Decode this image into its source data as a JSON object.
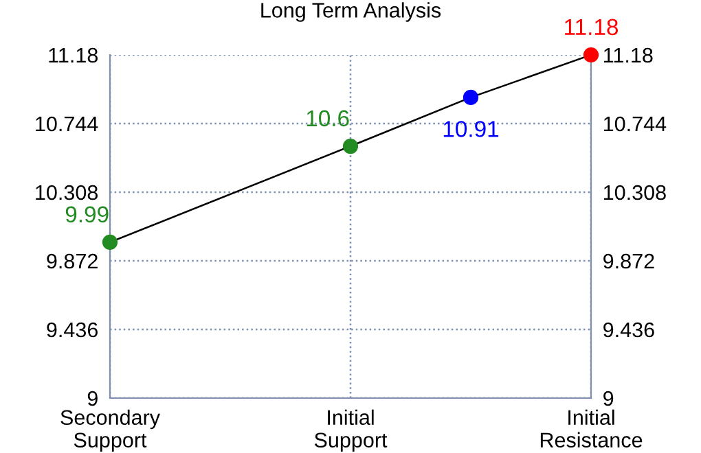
{
  "chart_data": {
    "type": "line",
    "title": "Long Term Analysis",
    "categories": [
      "Secondary\nSupport",
      null,
      "Initial\nSupport",
      null,
      "Initial\nResistance"
    ],
    "series": [
      {
        "color": "#000000",
        "colors": [
          "#228b22",
          null,
          "#228b22",
          "#0000ff",
          "#ff0000"
        ],
        "values": [
          9.99,
          null,
          10.6,
          10.91,
          11.18
        ]
      }
    ],
    "data_labels": true,
    "marker": "circle",
    "line_style": "solid",
    "ylim": [
      9,
      11.18
    ],
    "yticks": [
      9,
      9.436,
      9.872,
      10.308,
      10.744,
      11.18
    ],
    "y2lim": [
      9,
      11.18
    ],
    "y2ticks": [
      9,
      9.436,
      9.872,
      10.308,
      10.744,
      11.18
    ],
    "grid": true
  }
}
